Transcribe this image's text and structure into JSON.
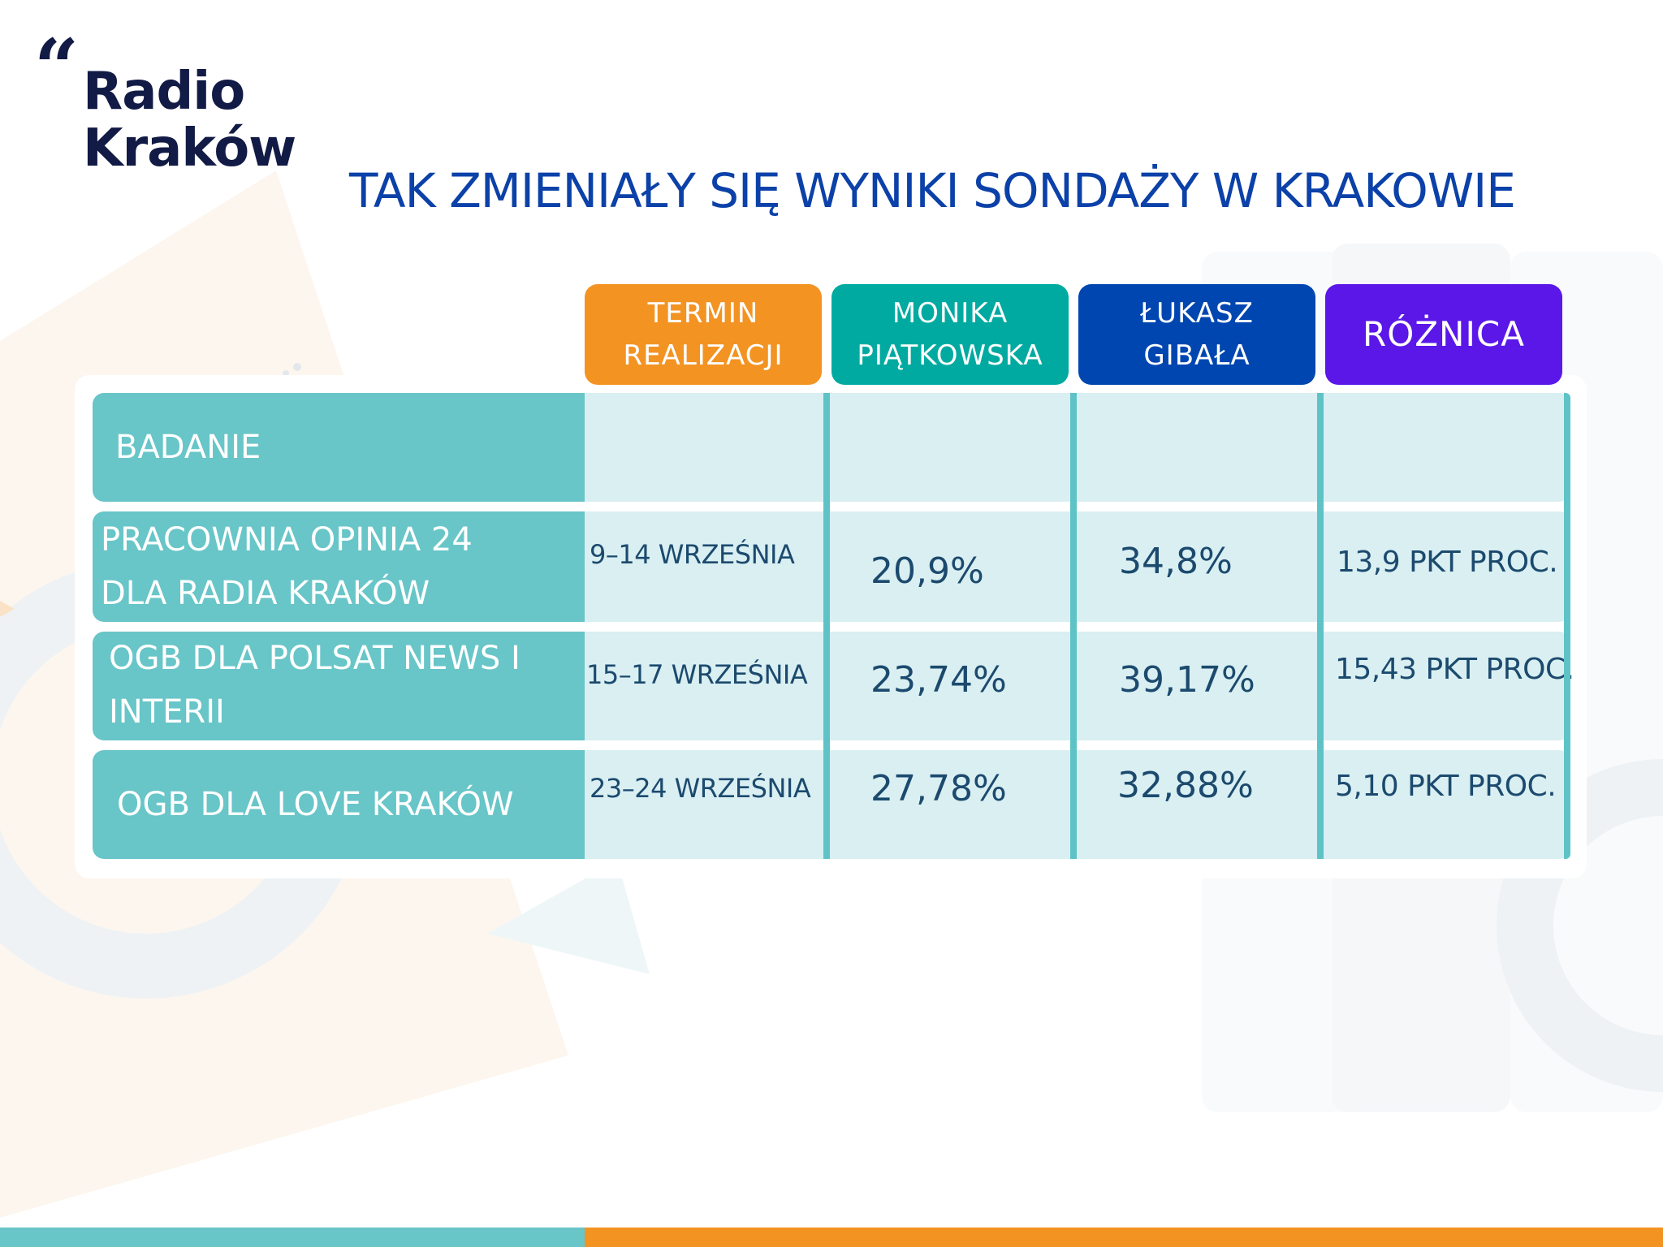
{
  "brand": {
    "logo_line1": "Radio",
    "logo_line2": "Kraków",
    "color": "#121b45"
  },
  "title": "TAK ZMIENIAŁY SIĘ WYNIKI SONDAŻY W KRAKOWIE",
  "columns": [
    {
      "label_line1": "TERMIN",
      "label_line2": "REALIZACJI",
      "color": "#f39322"
    },
    {
      "label_line1": "MONIKA",
      "label_line2": "PIĄTKOWSKA",
      "color": "#00aaa0"
    },
    {
      "label_line1": "ŁUKASZ",
      "label_line2": "GIBAŁA",
      "color": "#0046b0"
    },
    {
      "label_line1": "RÓŻNICA",
      "label_line2": "",
      "color": "#5a17e8"
    }
  ],
  "header_row_label": "BADANIE",
  "rows": [
    {
      "label_line1": "PRACOWNIA OPINIA 24",
      "label_line2": "DLA RADIA KRAKÓW",
      "date": "9–14 WRZEŚNIA",
      "piatkowska": "20,9%",
      "gibala": "34,8%",
      "diff": "13,9 PKT PROC."
    },
    {
      "label_line1": "OGB DLA POLSAT NEWS I",
      "label_line2": "INTERII",
      "date": "15–17 WRZEŚNIA",
      "piatkowska": "23,74%",
      "gibala": "39,17%",
      "diff": "15,43 PKT PROC."
    },
    {
      "label_line1": "OGB DLA LOVE KRAKÓW",
      "label_line2": "",
      "date": "23–24 WRZEŚNIA",
      "piatkowska": "27,78%",
      "gibala": "32,88%",
      "diff": "5,10 PKT PROC."
    }
  ],
  "colors": {
    "teal": "#68c5c8",
    "cell_light": "#d9eff2",
    "orange": "#f39322",
    "title_blue": "#0b41a8"
  }
}
